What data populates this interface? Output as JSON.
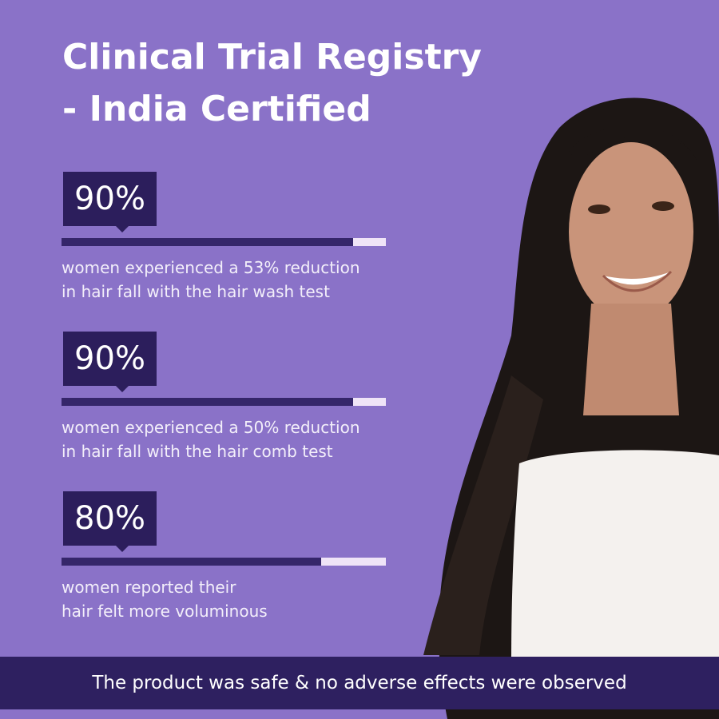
{
  "header": {
    "title_lines": [
      "Clinical Trial Registry",
      "- India Certified"
    ]
  },
  "stats": [
    {
      "value": 90,
      "label": "90%",
      "description": [
        "women experienced a 53% reduction",
        "in hair fall with the hair wash test"
      ]
    },
    {
      "value": 90,
      "label": "90%",
      "description": [
        "women experienced a 50% reduction",
        "in hair fall with the hair comb test"
      ]
    },
    {
      "value": 80,
      "label": "80%",
      "description": [
        "women reported their",
        "hair felt more voluminous"
      ]
    }
  ],
  "footer": {
    "text": "The product was safe & no adverse effects were observed"
  }
}
